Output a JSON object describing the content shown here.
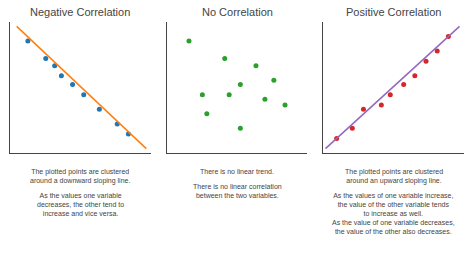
{
  "chart_data": [
    {
      "type": "scatter",
      "title": "Negative Correlation",
      "series": [
        {
          "type": "scatter",
          "x": [
            1.0,
            1.8,
            2.2,
            2.5,
            3.0,
            3.5,
            4.2,
            5.0,
            5.5
          ],
          "values": [
            8.2,
            7.0,
            6.5,
            5.8,
            5.2,
            4.5,
            3.5,
            2.5,
            1.8
          ]
        },
        {
          "type": "line",
          "x": [
            0.5,
            6.3
          ],
          "values": [
            9.2,
            0.8
          ]
        }
      ],
      "xlim": [
        0.2,
        6.5
      ],
      "ylim": [
        0.5,
        9.5
      ],
      "xticks": [],
      "yticks": [],
      "grid": false,
      "tick_labels": false,
      "annotations": [
        "The plotted points are clustered\naround a downward sloping line.",
        "As the values one variable\ndecreases, the other tend to\nincrease and vice versa."
      ]
    },
    {
      "type": "scatter",
      "title": "No Correlation",
      "series": [
        {
          "type": "scatter",
          "x": [
            1.2,
            1.8,
            2.8,
            3.5,
            4.2,
            5.0,
            5.5,
            2.0,
            3.0,
            4.6,
            3.5
          ],
          "values": [
            8.2,
            4.5,
            7.0,
            5.2,
            6.5,
            5.5,
            3.8,
            3.2,
            4.5,
            4.2,
            2.2
          ]
        }
      ],
      "xlim": [
        0.2,
        6.5
      ],
      "ylim": [
        0.5,
        9.5
      ],
      "xticks": [],
      "yticks": [],
      "grid": false,
      "tick_labels": false,
      "annotations": [
        "There is no linear trend.",
        "There is no linear correlation\nbetween the two variables."
      ]
    },
    {
      "type": "scatter",
      "title": "Positive Correlation",
      "series": [
        {
          "type": "scatter",
          "x": [
            0.8,
            1.5,
            2.0,
            2.8,
            3.2,
            3.8,
            4.3,
            4.8,
            5.3,
            5.8
          ],
          "values": [
            1.5,
            2.2,
            3.5,
            3.8,
            4.5,
            5.2,
            5.8,
            6.8,
            7.5,
            8.5
          ]
        },
        {
          "type": "line",
          "x": [
            0.3,
            6.3
          ],
          "values": [
            0.8,
            9.2
          ]
        }
      ],
      "xlim": [
        0.2,
        6.5
      ],
      "ylim": [
        0.5,
        9.5
      ],
      "xticks": [],
      "yticks": [],
      "grid": false,
      "tick_labels": false,
      "annotations": [
        "The plotted points are clustered\naround an upward sloping line.",
        "As the values of one variable increase,\nthe value of the other variable tends\nto increase as well.\nAs the value of one variable decreases,\nthe value of the other also decreases."
      ]
    }
  ]
}
